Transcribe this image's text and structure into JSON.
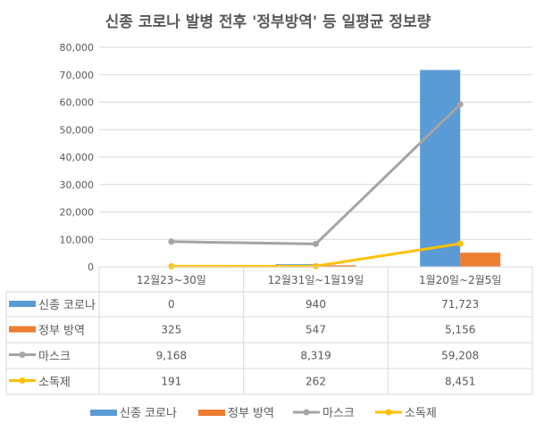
{
  "chart_data": {
    "type": "bar+line",
    "title": "신종 코로나 발병 전후 '정부방역' 등 일평균 정보량",
    "categories": [
      "12월23~30일",
      "12월31일~1월19일",
      "1월20일~2월5일"
    ],
    "ylim": [
      0,
      80000
    ],
    "yticks": [
      "0",
      "10,000",
      "20,000",
      "30,000",
      "40,000",
      "50,000",
      "60,000",
      "70,000",
      "80,000"
    ],
    "ytick_values": [
      0,
      10000,
      20000,
      30000,
      40000,
      50000,
      60000,
      70000,
      80000
    ],
    "grid": true,
    "legend": "bottom",
    "data_table": true,
    "series": [
      {
        "name": "신종 코로나",
        "kind": "bar",
        "color": "#5B9BD5",
        "values": [
          0,
          940,
          71723
        ],
        "labels": [
          "0",
          "940",
          "71,723"
        ]
      },
      {
        "name": "정부 방역",
        "kind": "bar",
        "color": "#ED7D31",
        "values": [
          325,
          547,
          5156
        ],
        "labels": [
          "325",
          "547",
          "5,156"
        ]
      },
      {
        "name": "마스크",
        "kind": "line",
        "color": "#A5A5A5",
        "values": [
          9168,
          8319,
          59208
        ],
        "labels": [
          "9,168",
          "8,319",
          "59,208"
        ]
      },
      {
        "name": "소독제",
        "kind": "line",
        "color": "#FFC000",
        "values": [
          191,
          262,
          8451
        ],
        "labels": [
          "191",
          "262",
          "8,451"
        ]
      }
    ]
  }
}
